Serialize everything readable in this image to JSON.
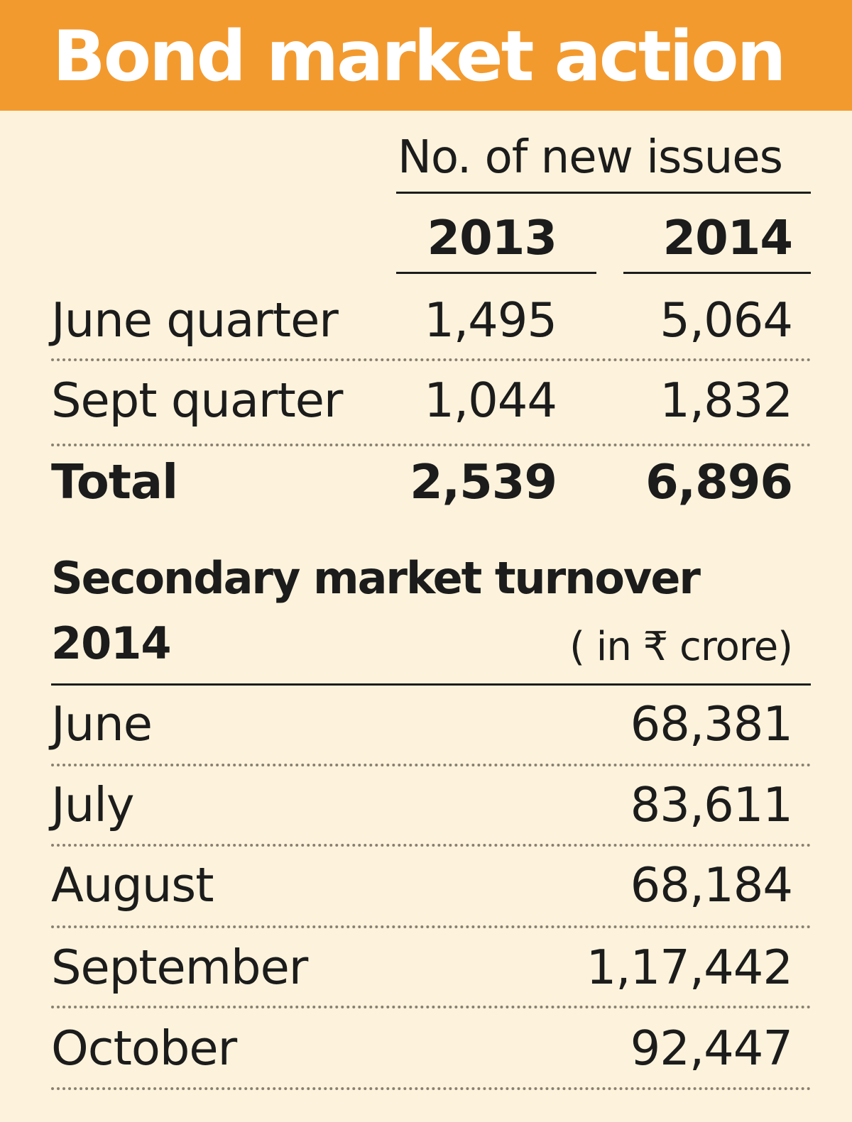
{
  "title": "Bond market action",
  "new_issues": {
    "heading": "No. of new issues",
    "years": [
      "2013",
      "2014"
    ],
    "rows": [
      {
        "label": "June quarter",
        "v2013": "1,495",
        "v2014": "5,064"
      },
      {
        "label": "Sept quarter",
        "v2013": "1,044",
        "v2014": "1,832"
      }
    ],
    "total": {
      "label": "Total",
      "v2013": "2,539",
      "v2014": "6,896"
    }
  },
  "turnover": {
    "heading": "Secondary market turnover",
    "year": "2014",
    "unit": "( in ₹ crore)",
    "rows": [
      {
        "month": "June",
        "value": "68,381"
      },
      {
        "month": "July",
        "value": "83,611"
      },
      {
        "month": "August",
        "value": "68,184"
      },
      {
        "month": "September",
        "value": "1,17,442"
      },
      {
        "month": "October",
        "value": "92,447"
      }
    ]
  },
  "chart_data": [
    {
      "type": "table",
      "title": "No. of new issues",
      "columns": [
        "2013",
        "2014"
      ],
      "rows": [
        "June quarter",
        "Sept quarter",
        "Total"
      ],
      "values": [
        [
          1495,
          5064
        ],
        [
          1044,
          1832
        ],
        [
          2539,
          6896
        ]
      ]
    },
    {
      "type": "table",
      "title": "Secondary market turnover 2014",
      "unit": "( in ₹ crore)",
      "rows": [
        "June",
        "July",
        "August",
        "September",
        "October"
      ],
      "values": [
        68381,
        83611,
        68184,
        117442,
        92447
      ]
    }
  ]
}
